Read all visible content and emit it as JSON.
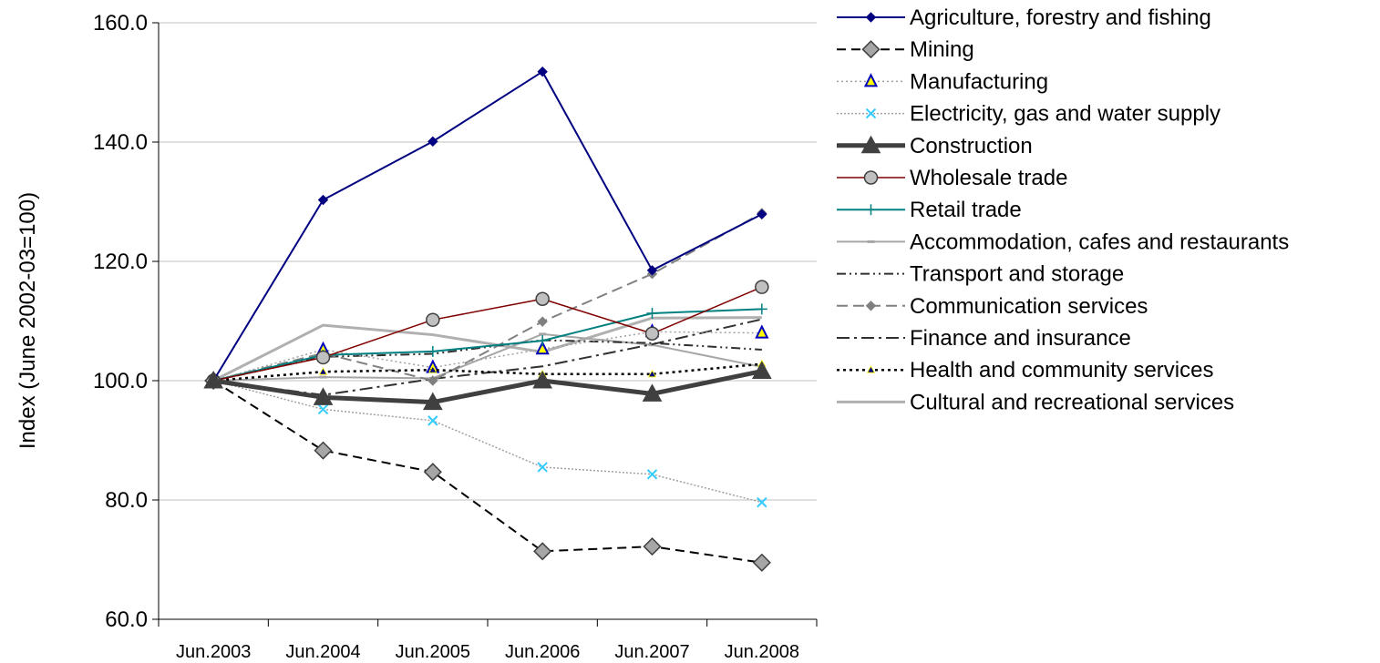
{
  "chart_data": {
    "type": "line",
    "categories": [
      "Jun.2003",
      "Jun.2004",
      "Jun.2005",
      "Jun.2006",
      "Jun.2007",
      "Jun.2008"
    ],
    "ylabel": "Index (June 2002-03=100)",
    "ylim": [
      60,
      160
    ],
    "yticks": [
      "60.0",
      "80.0",
      "100.0",
      "120.0",
      "140.0",
      "160.0"
    ],
    "grid": true,
    "legend_position": "right",
    "series": [
      {
        "name": "Agriculture, forestry and fishing",
        "values": [
          100,
          130.3,
          140.1,
          151.8,
          118.5,
          127.9
        ],
        "color": "#000080",
        "dash": "",
        "width": 2,
        "marker": "diamond-small",
        "marker_fill": "#000080",
        "marker_stroke": "#000080"
      },
      {
        "name": "Mining",
        "values": [
          100,
          88.3,
          84.7,
          71.4,
          72.2,
          69.5
        ],
        "color": "#000000",
        "dash": "10,6",
        "width": 2,
        "marker": "diamond-big",
        "marker_fill": "#a6a6a6",
        "marker_stroke": "#404040"
      },
      {
        "name": "Manufacturing",
        "values": [
          100,
          105.2,
          102.2,
          105.3,
          108.2,
          108.0
        ],
        "color": "#a0a0a0",
        "dash": "2,3",
        "width": 1.5,
        "marker": "triangle-open",
        "marker_fill": "#ffff00",
        "marker_stroke": "#0000c0"
      },
      {
        "name": "Electricity, gas and water supply",
        "values": [
          100,
          95.2,
          93.3,
          85.5,
          84.3,
          79.6
        ],
        "color": "#a0a0a0",
        "dash": "2,2",
        "width": 1.5,
        "marker": "x",
        "marker_fill": "none",
        "marker_stroke": "#33ccff"
      },
      {
        "name": "Construction",
        "values": [
          100,
          97.2,
          96.4,
          100.0,
          97.8,
          101.6
        ],
        "color": "#404040",
        "dash": "",
        "width": 5,
        "marker": "triangle-big",
        "marker_fill": "#404040",
        "marker_stroke": "#404040"
      },
      {
        "name": "Wholesale trade",
        "values": [
          100,
          103.9,
          110.2,
          113.7,
          107.9,
          115.7
        ],
        "color": "#800000",
        "dash": "",
        "width": 1.5,
        "marker": "circle",
        "marker_fill": "#c0c0c0",
        "marker_stroke": "#404040"
      },
      {
        "name": "Retail trade",
        "values": [
          100,
          104.3,
          104.9,
          106.7,
          111.3,
          112.0
        ],
        "color": "#008080",
        "dash": "",
        "width": 2,
        "marker": "plus",
        "marker_fill": "none",
        "marker_stroke": "#008080"
      },
      {
        "name": "Accommodation, cafes and restaurants",
        "values": [
          100,
          100.6,
          100.4,
          107.8,
          106.0,
          102.3
        ],
        "color": "#a6a6a6",
        "dash": "",
        "width": 2,
        "marker": "dash",
        "marker_fill": "none",
        "marker_stroke": "#a6a6a6"
      },
      {
        "name": "Transport and storage",
        "values": [
          100,
          104.0,
          104.5,
          106.8,
          106.3,
          105.2
        ],
        "color": "#303030",
        "dash": "10,4,2,4,2,4",
        "width": 2,
        "marker": "none",
        "marker_fill": "none",
        "marker_stroke": "none"
      },
      {
        "name": "Communication services",
        "values": [
          100,
          104.6,
          100.0,
          109.9,
          117.9,
          128.1
        ],
        "color": "#808080",
        "dash": "12,6",
        "width": 2,
        "marker": "diamond-small",
        "marker_fill": "#808080",
        "marker_stroke": "#808080"
      },
      {
        "name": "Finance and insurance",
        "values": [
          100,
          97.6,
          100.3,
          102.4,
          106.1,
          110.3
        ],
        "color": "#303030",
        "dash": "14,5,3,5",
        "width": 2,
        "marker": "none",
        "marker_fill": "none",
        "marker_stroke": "none"
      },
      {
        "name": "Health and community services",
        "values": [
          100,
          101.5,
          101.8,
          101.1,
          101.1,
          102.8
        ],
        "color": "#000000",
        "dash": "3,4",
        "width": 2.5,
        "marker": "triangle-small",
        "marker_fill": "#000080",
        "marker_stroke": "#ffff00"
      },
      {
        "name": "Cultural and recreational services",
        "values": [
          100,
          109.3,
          107.7,
          104.8,
          110.5,
          110.6
        ],
        "color": "#b0b0b0",
        "dash": "",
        "width": 3,
        "marker": "none",
        "marker_fill": "none",
        "marker_stroke": "none"
      }
    ]
  }
}
